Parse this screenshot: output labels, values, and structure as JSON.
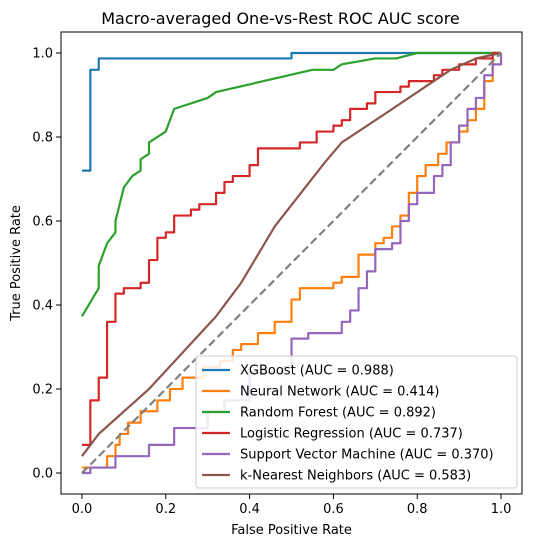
{
  "chart_data": {
    "type": "line",
    "title": "Macro-averaged One-vs-Rest ROC AUC score",
    "xlabel": "False Positive Rate",
    "ylabel": "True Positive Rate",
    "xlim": [
      -0.05,
      1.05
    ],
    "ylim": [
      -0.05,
      1.05
    ],
    "xticks": [
      "0.0",
      "0.2",
      "0.4",
      "0.6",
      "0.8",
      "1.0"
    ],
    "yticks": [
      "0.0",
      "0.2",
      "0.4",
      "0.6",
      "0.8",
      "1.0"
    ],
    "grid": false,
    "legend": "lower-right",
    "diagonal": {
      "color": "#7f7f7f",
      "points": [
        [
          0,
          0
        ],
        [
          1,
          1
        ]
      ]
    },
    "series": [
      {
        "name": "XGBoost (AUC = 0.988)",
        "color": "#1f77b4",
        "points": [
          [
            0,
            0.72
          ],
          [
            0.02,
            0.72
          ],
          [
            0.02,
            0.96
          ],
          [
            0.04,
            0.96
          ],
          [
            0.04,
            0.987
          ],
          [
            0.5,
            0.987
          ],
          [
            0.5,
            1.0
          ],
          [
            1,
            1
          ]
        ]
      },
      {
        "name": "Neural Network (AUC = 0.414)",
        "color": "#ff7f0e",
        "points": [
          [
            0,
            0.013
          ],
          [
            0.06,
            0.013
          ],
          [
            0.06,
            0.04
          ],
          [
            0.08,
            0.04
          ],
          [
            0.08,
            0.067
          ],
          [
            0.09,
            0.067
          ],
          [
            0.09,
            0.093
          ],
          [
            0.11,
            0.093
          ],
          [
            0.11,
            0.12
          ],
          [
            0.14,
            0.12
          ],
          [
            0.14,
            0.147
          ],
          [
            0.18,
            0.147
          ],
          [
            0.18,
            0.173
          ],
          [
            0.21,
            0.173
          ],
          [
            0.21,
            0.2
          ],
          [
            0.24,
            0.2
          ],
          [
            0.24,
            0.227
          ],
          [
            0.29,
            0.227
          ],
          [
            0.29,
            0.253
          ],
          [
            0.33,
            0.253
          ],
          [
            0.33,
            0.267
          ],
          [
            0.36,
            0.267
          ],
          [
            0.36,
            0.293
          ],
          [
            0.38,
            0.293
          ],
          [
            0.38,
            0.307
          ],
          [
            0.42,
            0.307
          ],
          [
            0.42,
            0.333
          ],
          [
            0.46,
            0.333
          ],
          [
            0.46,
            0.36
          ],
          [
            0.5,
            0.36
          ],
          [
            0.5,
            0.413
          ],
          [
            0.52,
            0.413
          ],
          [
            0.52,
            0.44
          ],
          [
            0.6,
            0.44
          ],
          [
            0.6,
            0.453
          ],
          [
            0.62,
            0.453
          ],
          [
            0.62,
            0.467
          ],
          [
            0.66,
            0.467
          ],
          [
            0.66,
            0.52
          ],
          [
            0.7,
            0.52
          ],
          [
            0.7,
            0.547
          ],
          [
            0.72,
            0.547
          ],
          [
            0.72,
            0.56
          ],
          [
            0.74,
            0.56
          ],
          [
            0.74,
            0.587
          ],
          [
            0.76,
            0.587
          ],
          [
            0.76,
            0.613
          ],
          [
            0.78,
            0.613
          ],
          [
            0.78,
            0.667
          ],
          [
            0.8,
            0.667
          ],
          [
            0.8,
            0.707
          ],
          [
            0.82,
            0.707
          ],
          [
            0.82,
            0.733
          ],
          [
            0.85,
            0.733
          ],
          [
            0.85,
            0.76
          ],
          [
            0.87,
            0.76
          ],
          [
            0.87,
            0.787
          ],
          [
            0.9,
            0.787
          ],
          [
            0.9,
            0.813
          ],
          [
            0.92,
            0.813
          ],
          [
            0.92,
            0.84
          ],
          [
            0.94,
            0.84
          ],
          [
            0.94,
            0.867
          ],
          [
            0.96,
            0.867
          ],
          [
            0.96,
            0.933
          ],
          [
            0.98,
            0.933
          ],
          [
            0.98,
            1.0
          ],
          [
            1,
            1
          ]
        ]
      },
      {
        "name": "Random Forest (AUC = 0.892)",
        "color": "#2ca02c",
        "points": [
          [
            0,
            0.373
          ],
          [
            0.04,
            0.44
          ],
          [
            0.04,
            0.493
          ],
          [
            0.05,
            0.52
          ],
          [
            0.06,
            0.547
          ],
          [
            0.07,
            0.56
          ],
          [
            0.08,
            0.573
          ],
          [
            0.08,
            0.6
          ],
          [
            0.1,
            0.68
          ],
          [
            0.12,
            0.707
          ],
          [
            0.14,
            0.72
          ],
          [
            0.14,
            0.747
          ],
          [
            0.16,
            0.76
          ],
          [
            0.16,
            0.787
          ],
          [
            0.2,
            0.813
          ],
          [
            0.22,
            0.867
          ],
          [
            0.3,
            0.893
          ],
          [
            0.32,
            0.907
          ],
          [
            0.55,
            0.96
          ],
          [
            0.6,
            0.96
          ],
          [
            0.62,
            0.973
          ],
          [
            0.7,
            0.987
          ],
          [
            0.75,
            0.987
          ],
          [
            0.8,
            1.0
          ],
          [
            1,
            1
          ]
        ]
      },
      {
        "name": "Logistic Regression (AUC = 0.737)",
        "color": "#d62728",
        "points": [
          [
            0,
            0.067
          ],
          [
            0.02,
            0.067
          ],
          [
            0.02,
            0.173
          ],
          [
            0.04,
            0.173
          ],
          [
            0.04,
            0.227
          ],
          [
            0.06,
            0.227
          ],
          [
            0.06,
            0.36
          ],
          [
            0.08,
            0.36
          ],
          [
            0.08,
            0.427
          ],
          [
            0.1,
            0.427
          ],
          [
            0.1,
            0.44
          ],
          [
            0.14,
            0.44
          ],
          [
            0.14,
            0.453
          ],
          [
            0.16,
            0.453
          ],
          [
            0.16,
            0.507
          ],
          [
            0.18,
            0.507
          ],
          [
            0.18,
            0.56
          ],
          [
            0.2,
            0.56
          ],
          [
            0.2,
            0.573
          ],
          [
            0.22,
            0.573
          ],
          [
            0.22,
            0.613
          ],
          [
            0.26,
            0.613
          ],
          [
            0.26,
            0.627
          ],
          [
            0.28,
            0.627
          ],
          [
            0.28,
            0.64
          ],
          [
            0.32,
            0.64
          ],
          [
            0.32,
            0.667
          ],
          [
            0.34,
            0.667
          ],
          [
            0.34,
            0.693
          ],
          [
            0.36,
            0.693
          ],
          [
            0.36,
            0.707
          ],
          [
            0.4,
            0.707
          ],
          [
            0.4,
            0.733
          ],
          [
            0.42,
            0.733
          ],
          [
            0.42,
            0.773
          ],
          [
            0.52,
            0.773
          ],
          [
            0.52,
            0.787
          ],
          [
            0.56,
            0.787
          ],
          [
            0.56,
            0.813
          ],
          [
            0.6,
            0.813
          ],
          [
            0.6,
            0.827
          ],
          [
            0.62,
            0.827
          ],
          [
            0.62,
            0.84
          ],
          [
            0.64,
            0.84
          ],
          [
            0.64,
            0.867
          ],
          [
            0.68,
            0.867
          ],
          [
            0.68,
            0.88
          ],
          [
            0.7,
            0.88
          ],
          [
            0.7,
            0.907
          ],
          [
            0.76,
            0.907
          ],
          [
            0.76,
            0.92
          ],
          [
            0.78,
            0.92
          ],
          [
            0.78,
            0.933
          ],
          [
            0.84,
            0.933
          ],
          [
            0.84,
            0.947
          ],
          [
            0.86,
            0.947
          ],
          [
            0.86,
            0.96
          ],
          [
            0.9,
            0.96
          ],
          [
            0.9,
            0.973
          ],
          [
            0.94,
            0.973
          ],
          [
            0.94,
            0.987
          ],
          [
            0.98,
            0.987
          ],
          [
            0.98,
            1.0
          ],
          [
            1,
            1
          ]
        ]
      },
      {
        "name": "Support Vector Machine (AUC = 0.370)",
        "color": "#9467bd",
        "points": [
          [
            0,
            0.0
          ],
          [
            0.02,
            0.0
          ],
          [
            0.02,
            0.013
          ],
          [
            0.08,
            0.013
          ],
          [
            0.08,
            0.04
          ],
          [
            0.16,
            0.04
          ],
          [
            0.16,
            0.067
          ],
          [
            0.22,
            0.067
          ],
          [
            0.22,
            0.107
          ],
          [
            0.3,
            0.107
          ],
          [
            0.3,
            0.147
          ],
          [
            0.34,
            0.147
          ],
          [
            0.34,
            0.173
          ],
          [
            0.4,
            0.173
          ],
          [
            0.4,
            0.24
          ],
          [
            0.48,
            0.24
          ],
          [
            0.48,
            0.253
          ],
          [
            0.5,
            0.253
          ],
          [
            0.5,
            0.32
          ],
          [
            0.54,
            0.32
          ],
          [
            0.54,
            0.333
          ],
          [
            0.62,
            0.333
          ],
          [
            0.62,
            0.36
          ],
          [
            0.64,
            0.36
          ],
          [
            0.64,
            0.387
          ],
          [
            0.66,
            0.387
          ],
          [
            0.66,
            0.44
          ],
          [
            0.68,
            0.44
          ],
          [
            0.68,
            0.48
          ],
          [
            0.7,
            0.48
          ],
          [
            0.7,
            0.533
          ],
          [
            0.74,
            0.533
          ],
          [
            0.74,
            0.547
          ],
          [
            0.76,
            0.547
          ],
          [
            0.76,
            0.6
          ],
          [
            0.78,
            0.6
          ],
          [
            0.78,
            0.64
          ],
          [
            0.8,
            0.64
          ],
          [
            0.8,
            0.667
          ],
          [
            0.84,
            0.667
          ],
          [
            0.84,
            0.707
          ],
          [
            0.86,
            0.707
          ],
          [
            0.86,
            0.733
          ],
          [
            0.88,
            0.733
          ],
          [
            0.88,
            0.787
          ],
          [
            0.9,
            0.787
          ],
          [
            0.9,
            0.827
          ],
          [
            0.92,
            0.827
          ],
          [
            0.92,
            0.867
          ],
          [
            0.94,
            0.867
          ],
          [
            0.94,
            0.893
          ],
          [
            0.96,
            0.893
          ],
          [
            0.96,
            0.947
          ],
          [
            0.98,
            0.947
          ],
          [
            0.98,
            0.973
          ],
          [
            1,
            0.973
          ],
          [
            1,
            1
          ]
        ]
      },
      {
        "name": "k-Nearest Neighbors (AUC = 0.583)",
        "color": "#8c564b",
        "points": [
          [
            0,
            0.04
          ],
          [
            0.04,
            0.093
          ],
          [
            0.16,
            0.2
          ],
          [
            0.32,
            0.373
          ],
          [
            0.38,
            0.453
          ],
          [
            0.46,
            0.587
          ],
          [
            0.58,
            0.74
          ],
          [
            0.62,
            0.787
          ],
          [
            0.72,
            0.853
          ],
          [
            0.82,
            0.92
          ],
          [
            0.88,
            0.96
          ],
          [
            0.94,
            0.987
          ],
          [
            1,
            1
          ]
        ]
      }
    ]
  }
}
